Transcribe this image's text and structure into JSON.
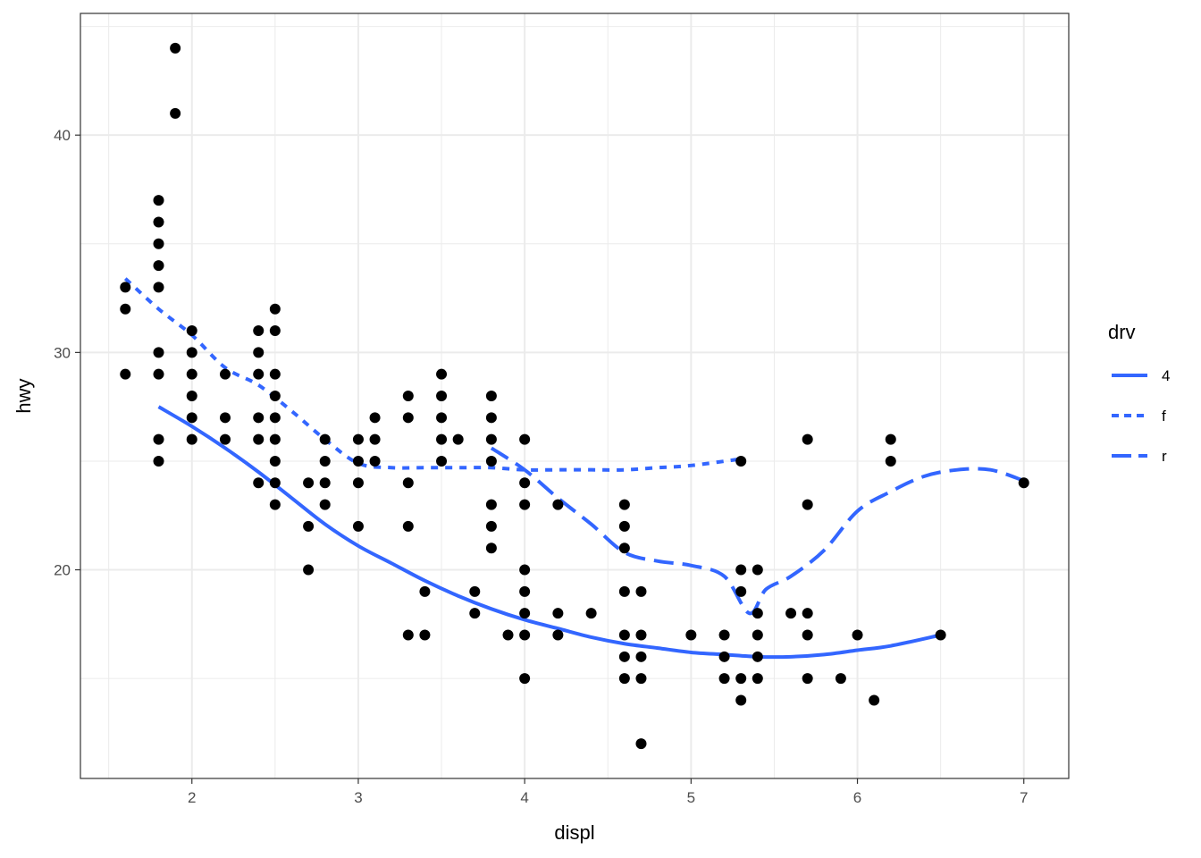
{
  "chart_data": {
    "type": "scatter",
    "title": "",
    "xlabel": "displ",
    "ylabel": "hwy",
    "xlim": [
      1.33,
      7.27
    ],
    "ylim": [
      10.4,
      45.6
    ],
    "x_ticks": [
      2,
      3,
      4,
      5,
      6,
      7
    ],
    "y_ticks": [
      20,
      30,
      40
    ],
    "x_tick_labels": [
      "2",
      "3",
      "4",
      "5",
      "6",
      "7"
    ],
    "y_tick_labels": [
      "20",
      "30",
      "40"
    ],
    "grid": true,
    "legend": {
      "title": "drv",
      "placement": "right",
      "entries": [
        {
          "label": "4",
          "dash": "solid"
        },
        {
          "label": "f",
          "dash": "dotted"
        },
        {
          "label": "r",
          "dash": "longdash"
        }
      ]
    },
    "colors": {
      "smooth": "#3366FF",
      "points": "#000000",
      "grid": "#ebebeb",
      "border": "#333333"
    },
    "points": [
      [
        1.6,
        33
      ],
      [
        1.6,
        32
      ],
      [
        1.6,
        29
      ],
      [
        1.8,
        37
      ],
      [
        1.8,
        36
      ],
      [
        1.8,
        35
      ],
      [
        1.8,
        34
      ],
      [
        1.8,
        33
      ],
      [
        1.8,
        30
      ],
      [
        1.8,
        29
      ],
      [
        1.8,
        26
      ],
      [
        1.8,
        25
      ],
      [
        1.9,
        44
      ],
      [
        1.9,
        41
      ],
      [
        2.0,
        31
      ],
      [
        2.0,
        30
      ],
      [
        2.0,
        29
      ],
      [
        2.0,
        28
      ],
      [
        2.0,
        27
      ],
      [
        2.0,
        26
      ],
      [
        2.2,
        29
      ],
      [
        2.2,
        27
      ],
      [
        2.2,
        26
      ],
      [
        2.4,
        31
      ],
      [
        2.4,
        30
      ],
      [
        2.4,
        29
      ],
      [
        2.4,
        27
      ],
      [
        2.4,
        26
      ],
      [
        2.4,
        24
      ],
      [
        2.5,
        32
      ],
      [
        2.5,
        31
      ],
      [
        2.5,
        29
      ],
      [
        2.5,
        28
      ],
      [
        2.5,
        27
      ],
      [
        2.5,
        26
      ],
      [
        2.5,
        25
      ],
      [
        2.5,
        24
      ],
      [
        2.5,
        23
      ],
      [
        2.7,
        24
      ],
      [
        2.7,
        22
      ],
      [
        2.7,
        20
      ],
      [
        2.8,
        26
      ],
      [
        2.8,
        25
      ],
      [
        2.8,
        24
      ],
      [
        2.8,
        23
      ],
      [
        3.0,
        26
      ],
      [
        3.0,
        25
      ],
      [
        3.0,
        24
      ],
      [
        3.0,
        22
      ],
      [
        3.1,
        27
      ],
      [
        3.1,
        26
      ],
      [
        3.1,
        25
      ],
      [
        3.3,
        28
      ],
      [
        3.3,
        27
      ],
      [
        3.3,
        24
      ],
      [
        3.3,
        22
      ],
      [
        3.3,
        17
      ],
      [
        3.4,
        19
      ],
      [
        3.4,
        17
      ],
      [
        3.5,
        29
      ],
      [
        3.5,
        28
      ],
      [
        3.5,
        27
      ],
      [
        3.5,
        26
      ],
      [
        3.5,
        25
      ],
      [
        3.6,
        26
      ],
      [
        3.7,
        19
      ],
      [
        3.7,
        18
      ],
      [
        3.8,
        28
      ],
      [
        3.8,
        27
      ],
      [
        3.8,
        26
      ],
      [
        3.8,
        25
      ],
      [
        3.8,
        23
      ],
      [
        3.8,
        22
      ],
      [
        3.8,
        21
      ],
      [
        3.9,
        17
      ],
      [
        4.0,
        26
      ],
      [
        4.0,
        24
      ],
      [
        4.0,
        23
      ],
      [
        4.0,
        20
      ],
      [
        4.0,
        19
      ],
      [
        4.0,
        18
      ],
      [
        4.0,
        17
      ],
      [
        4.0,
        15
      ],
      [
        4.2,
        23
      ],
      [
        4.2,
        18
      ],
      [
        4.2,
        17
      ],
      [
        4.4,
        18
      ],
      [
        4.6,
        23
      ],
      [
        4.6,
        22
      ],
      [
        4.6,
        21
      ],
      [
        4.6,
        19
      ],
      [
        4.6,
        17
      ],
      [
        4.6,
        16
      ],
      [
        4.6,
        15
      ],
      [
        4.7,
        19
      ],
      [
        4.7,
        17
      ],
      [
        4.7,
        16
      ],
      [
        4.7,
        15
      ],
      [
        4.7,
        12
      ],
      [
        5.0,
        17
      ],
      [
        5.2,
        17
      ],
      [
        5.2,
        16
      ],
      [
        5.2,
        15
      ],
      [
        5.3,
        25
      ],
      [
        5.3,
        20
      ],
      [
        5.3,
        19
      ],
      [
        5.3,
        15
      ],
      [
        5.3,
        14
      ],
      [
        5.4,
        20
      ],
      [
        5.4,
        18
      ],
      [
        5.4,
        17
      ],
      [
        5.4,
        16
      ],
      [
        5.4,
        15
      ],
      [
        5.6,
        18
      ],
      [
        5.7,
        26
      ],
      [
        5.7,
        23
      ],
      [
        5.7,
        18
      ],
      [
        5.7,
        17
      ],
      [
        5.7,
        15
      ],
      [
        5.9,
        15
      ],
      [
        6.0,
        17
      ],
      [
        6.1,
        14
      ],
      [
        6.2,
        26
      ],
      [
        6.2,
        25
      ],
      [
        6.5,
        17
      ],
      [
        7.0,
        24
      ]
    ],
    "series": [
      {
        "name": "4",
        "dash": "solid",
        "x": [
          1.8,
          2.0,
          2.2,
          2.4,
          2.6,
          2.8,
          3.0,
          3.2,
          3.4,
          3.6,
          3.8,
          4.0,
          4.2,
          4.4,
          4.6,
          4.8,
          5.0,
          5.2,
          5.4,
          5.6,
          5.8,
          6.0,
          6.2,
          6.5
        ],
        "values": [
          27.5,
          26.6,
          25.6,
          24.5,
          23.3,
          22.1,
          21.1,
          20.3,
          19.5,
          18.8,
          18.2,
          17.7,
          17.3,
          16.9,
          16.6,
          16.4,
          16.2,
          16.1,
          16.0,
          16.0,
          16.1,
          16.3,
          16.5,
          17.0
        ]
      },
      {
        "name": "f",
        "dash": "dotted",
        "x": [
          1.6,
          1.8,
          2.0,
          2.2,
          2.4,
          2.6,
          2.8,
          3.0,
          3.2,
          3.4,
          3.6,
          3.8,
          4.0,
          4.2,
          4.4,
          4.6,
          4.8,
          5.0,
          5.3
        ],
        "values": [
          33.4,
          32.0,
          30.8,
          29.3,
          28.5,
          27.3,
          26.0,
          24.9,
          24.7,
          24.7,
          24.7,
          24.7,
          24.6,
          24.6,
          24.6,
          24.6,
          24.7,
          24.8,
          25.1
        ]
      },
      {
        "name": "r",
        "dash": "longdash",
        "x": [
          3.8,
          4.0,
          4.2,
          4.4,
          4.6,
          4.8,
          5.0,
          5.2,
          5.35,
          5.45,
          5.6,
          5.8,
          6.0,
          6.2,
          6.4,
          6.6,
          6.8,
          7.0
        ],
        "values": [
          25.6,
          24.6,
          23.3,
          22.1,
          20.8,
          20.4,
          20.2,
          19.7,
          18.0,
          19.1,
          19.7,
          20.9,
          22.7,
          23.6,
          24.3,
          24.6,
          24.6,
          24.1
        ]
      }
    ]
  }
}
